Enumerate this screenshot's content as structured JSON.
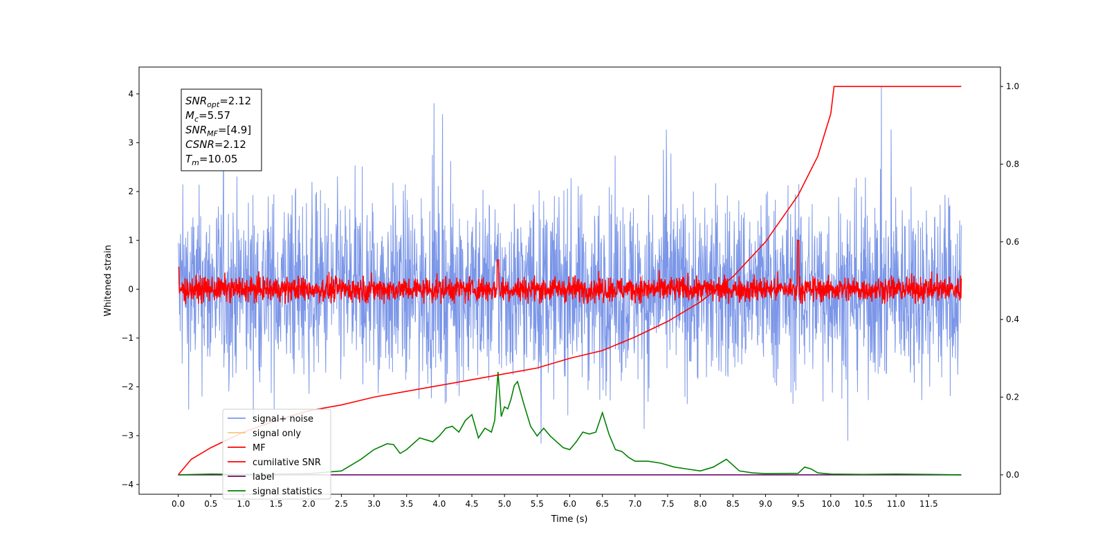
{
  "chart_data": {
    "type": "line",
    "xlabel": "Time (s)",
    "ylabel": "Whitened strain",
    "xlim": [
      -0.6,
      12.6
    ],
    "ylim_left": [
      -4.2,
      4.55
    ],
    "ylim_right": [
      -0.05,
      1.05
    ],
    "x_ticks": [
      "0.0",
      "0.5",
      "1.0",
      "1.5",
      "2.0",
      "2.5",
      "3.0",
      "3.5",
      "4.0",
      "4.5",
      "5.0",
      "5.5",
      "6.0",
      "6.5",
      "7.0",
      "7.5",
      "8.0",
      "8.5",
      "9.0",
      "9.5",
      "10.0",
      "10.5",
      "11.0",
      "11.5"
    ],
    "y_ticks_left": [
      "4",
      "3",
      "2",
      "1",
      "0",
      "−1",
      "−2",
      "−3",
      "−4"
    ],
    "y_ticks_right": [
      "1.0",
      "0.8",
      "0.6",
      "0.4",
      "0.2",
      "0.0"
    ],
    "grid": false,
    "legend_position": "lower-left",
    "annotation_lines": [
      {
        "base": "SNR",
        "sub": "opt",
        "value": "=2.12"
      },
      {
        "base": "M",
        "sub": "c",
        "value": "=5.57"
      },
      {
        "base": "SNR",
        "sub": "MF",
        "value": "=[4.9]"
      },
      {
        "base": "CSNR",
        "sub": "",
        "value": "=2.12"
      },
      {
        "base": "T",
        "sub": "m",
        "value": "=10.05"
      }
    ],
    "series": [
      {
        "name": "signal+ noise",
        "color": "#7b96e8",
        "axis": "left",
        "x_range": [
          0,
          12
        ],
        "amplitude_range": [
          -3.8,
          4.15
        ],
        "typical_range": [
          -2.2,
          2.2
        ]
      },
      {
        "name": "signal only",
        "color": "#f5c97a",
        "axis": "left",
        "values": []
      },
      {
        "name": "MF",
        "color": "#ff0000",
        "axis": "left",
        "x_range": [
          0,
          12
        ],
        "typical_range": [
          -0.3,
          0.5
        ],
        "peaks": [
          [
            0.0,
            0.45
          ],
          [
            4.9,
            0.6
          ],
          [
            9.5,
            1.0
          ]
        ]
      },
      {
        "name": "cumilative SNR",
        "color": "#ff0000",
        "axis": "right",
        "x": [
          0.0,
          0.2,
          0.5,
          1.0,
          1.5,
          2.0,
          2.5,
          3.0,
          3.5,
          4.0,
          4.5,
          5.0,
          5.5,
          6.0,
          6.5,
          7.0,
          7.5,
          8.0,
          8.5,
          9.0,
          9.5,
          9.8,
          10.0,
          10.05,
          12.0
        ],
        "values": [
          0.0,
          0.04,
          0.07,
          0.11,
          0.14,
          0.165,
          0.18,
          0.2,
          0.215,
          0.23,
          0.245,
          0.26,
          0.275,
          0.3,
          0.32,
          0.355,
          0.395,
          0.445,
          0.51,
          0.6,
          0.72,
          0.82,
          0.93,
          1.0,
          1.0
        ]
      },
      {
        "name": "label",
        "color": "#6a0a6a",
        "axis": "right",
        "x": [
          0,
          12
        ],
        "values": [
          0,
          0
        ]
      },
      {
        "name": "signal statistics",
        "color": "#008000",
        "axis": "right",
        "x": [
          0.0,
          0.5,
          1.0,
          1.5,
          2.0,
          2.5,
          2.7,
          2.8,
          3.0,
          3.2,
          3.3,
          3.4,
          3.5,
          3.6,
          3.7,
          3.8,
          3.9,
          4.0,
          4.1,
          4.2,
          4.3,
          4.4,
          4.5,
          4.6,
          4.7,
          4.8,
          4.85,
          4.9,
          4.95,
          5.0,
          5.05,
          5.1,
          5.15,
          5.2,
          5.3,
          5.4,
          5.5,
          5.6,
          5.7,
          5.8,
          5.9,
          6.0,
          6.1,
          6.2,
          6.3,
          6.4,
          6.5,
          6.6,
          6.7,
          6.8,
          6.9,
          7.0,
          7.2,
          7.4,
          7.6,
          7.8,
          8.0,
          8.2,
          8.4,
          8.6,
          8.8,
          9.0,
          9.5,
          9.6,
          9.7,
          9.8,
          10.0,
          10.5,
          11.0,
          11.5,
          12.0
        ],
        "values": [
          0.0,
          0.002,
          0.001,
          0.002,
          0.003,
          0.01,
          0.03,
          0.04,
          0.065,
          0.08,
          0.078,
          0.055,
          0.065,
          0.08,
          0.095,
          0.09,
          0.085,
          0.1,
          0.12,
          0.125,
          0.11,
          0.14,
          0.155,
          0.095,
          0.12,
          0.11,
          0.14,
          0.265,
          0.15,
          0.175,
          0.17,
          0.195,
          0.23,
          0.24,
          0.18,
          0.125,
          0.1,
          0.12,
          0.1,
          0.085,
          0.07,
          0.065,
          0.085,
          0.11,
          0.105,
          0.11,
          0.16,
          0.105,
          0.065,
          0.06,
          0.045,
          0.035,
          0.035,
          0.03,
          0.02,
          0.015,
          0.01,
          0.02,
          0.04,
          0.01,
          0.005,
          0.003,
          0.004,
          0.02,
          0.015,
          0.005,
          0.002,
          0.001,
          0.002,
          0.001,
          0.0
        ]
      }
    ]
  }
}
